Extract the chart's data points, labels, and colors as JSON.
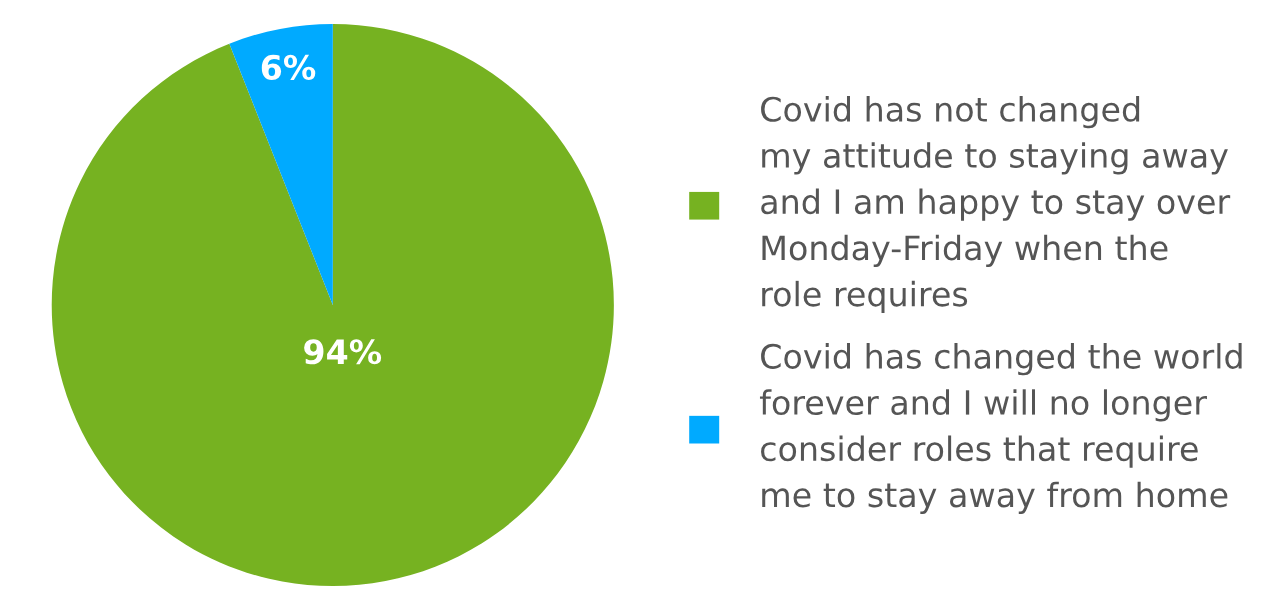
{
  "chart_data": {
    "type": "pie",
    "categories": [
      "Covid has not changed\nmy attitude to staying away\nand I am happy to stay over\nMonday-Friday when the\nrole requires",
      "Covid has changed the world\nforever and I will no longer\nconsider roles that require\nme to stay away from home"
    ],
    "values": [
      94,
      6
    ],
    "colors": [
      "#76b221",
      "#00aaff"
    ],
    "value_labels": [
      "94%",
      "6%"
    ],
    "legend": "right"
  }
}
